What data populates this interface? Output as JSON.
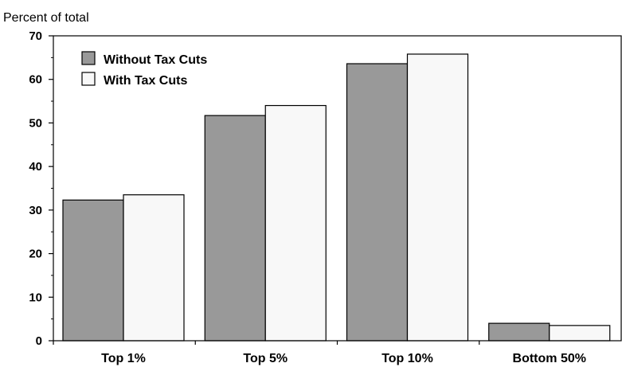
{
  "chart_data": {
    "type": "bar",
    "ylabel": "Percent of total",
    "categories": [
      "Top 1%",
      "Top 5%",
      "Top 10%",
      "Bottom 50%"
    ],
    "series": [
      {
        "name": "Without Tax Cuts",
        "color": "#999999",
        "values": [
          32.3,
          51.7,
          63.6,
          4.0
        ]
      },
      {
        "name": "With Tax Cuts",
        "color": "#f8f8f8",
        "values": [
          33.5,
          54.0,
          65.8,
          3.5
        ]
      }
    ],
    "ylim": [
      0,
      70
    ],
    "yticks": [
      "0",
      "10",
      "20",
      "30",
      "40",
      "50",
      "60",
      "70"
    ],
    "grid": false,
    "legend": "top-left"
  }
}
